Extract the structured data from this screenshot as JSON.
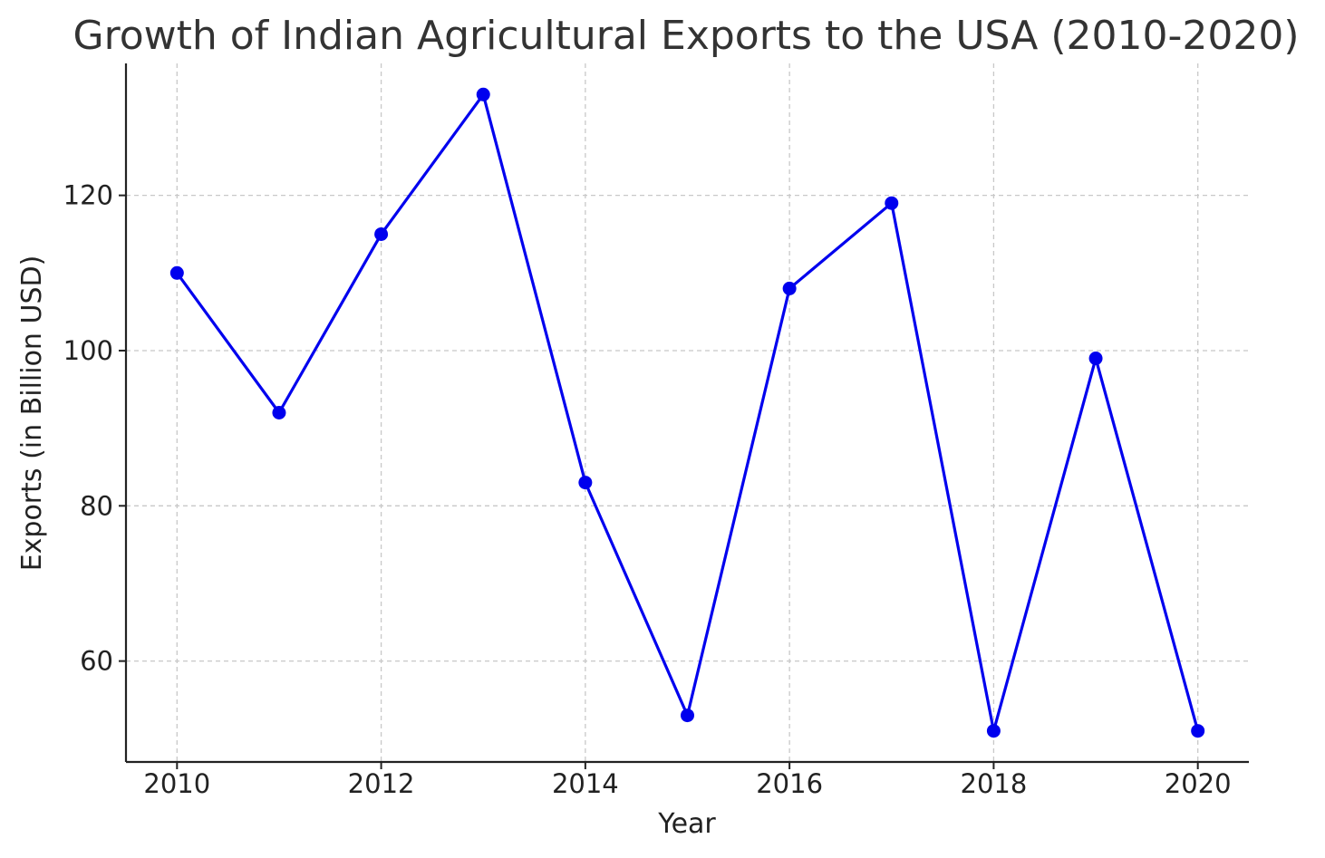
{
  "chart_data": {
    "type": "line",
    "title": "Growth of Indian Agricultural Exports to the USA (2010-2020)",
    "xlabel": "Year",
    "ylabel": "Exports (in Billion USD)",
    "x": [
      2010,
      2011,
      2012,
      2013,
      2014,
      2015,
      2016,
      2017,
      2018,
      2019,
      2020
    ],
    "series": [
      {
        "values": [
          110,
          92,
          115,
          133,
          83,
          53,
          108,
          119,
          51,
          99,
          51
        ],
        "color": "#0000ee",
        "marker": "circle"
      }
    ],
    "xlim": [
      2009.5,
      2020.5
    ],
    "ylim": [
      47,
      137
    ],
    "xticks": [
      2010,
      2012,
      2014,
      2016,
      2018,
      2020
    ],
    "yticks": [
      60,
      80,
      100,
      120
    ],
    "grid": true,
    "grid_style": "dashed"
  }
}
